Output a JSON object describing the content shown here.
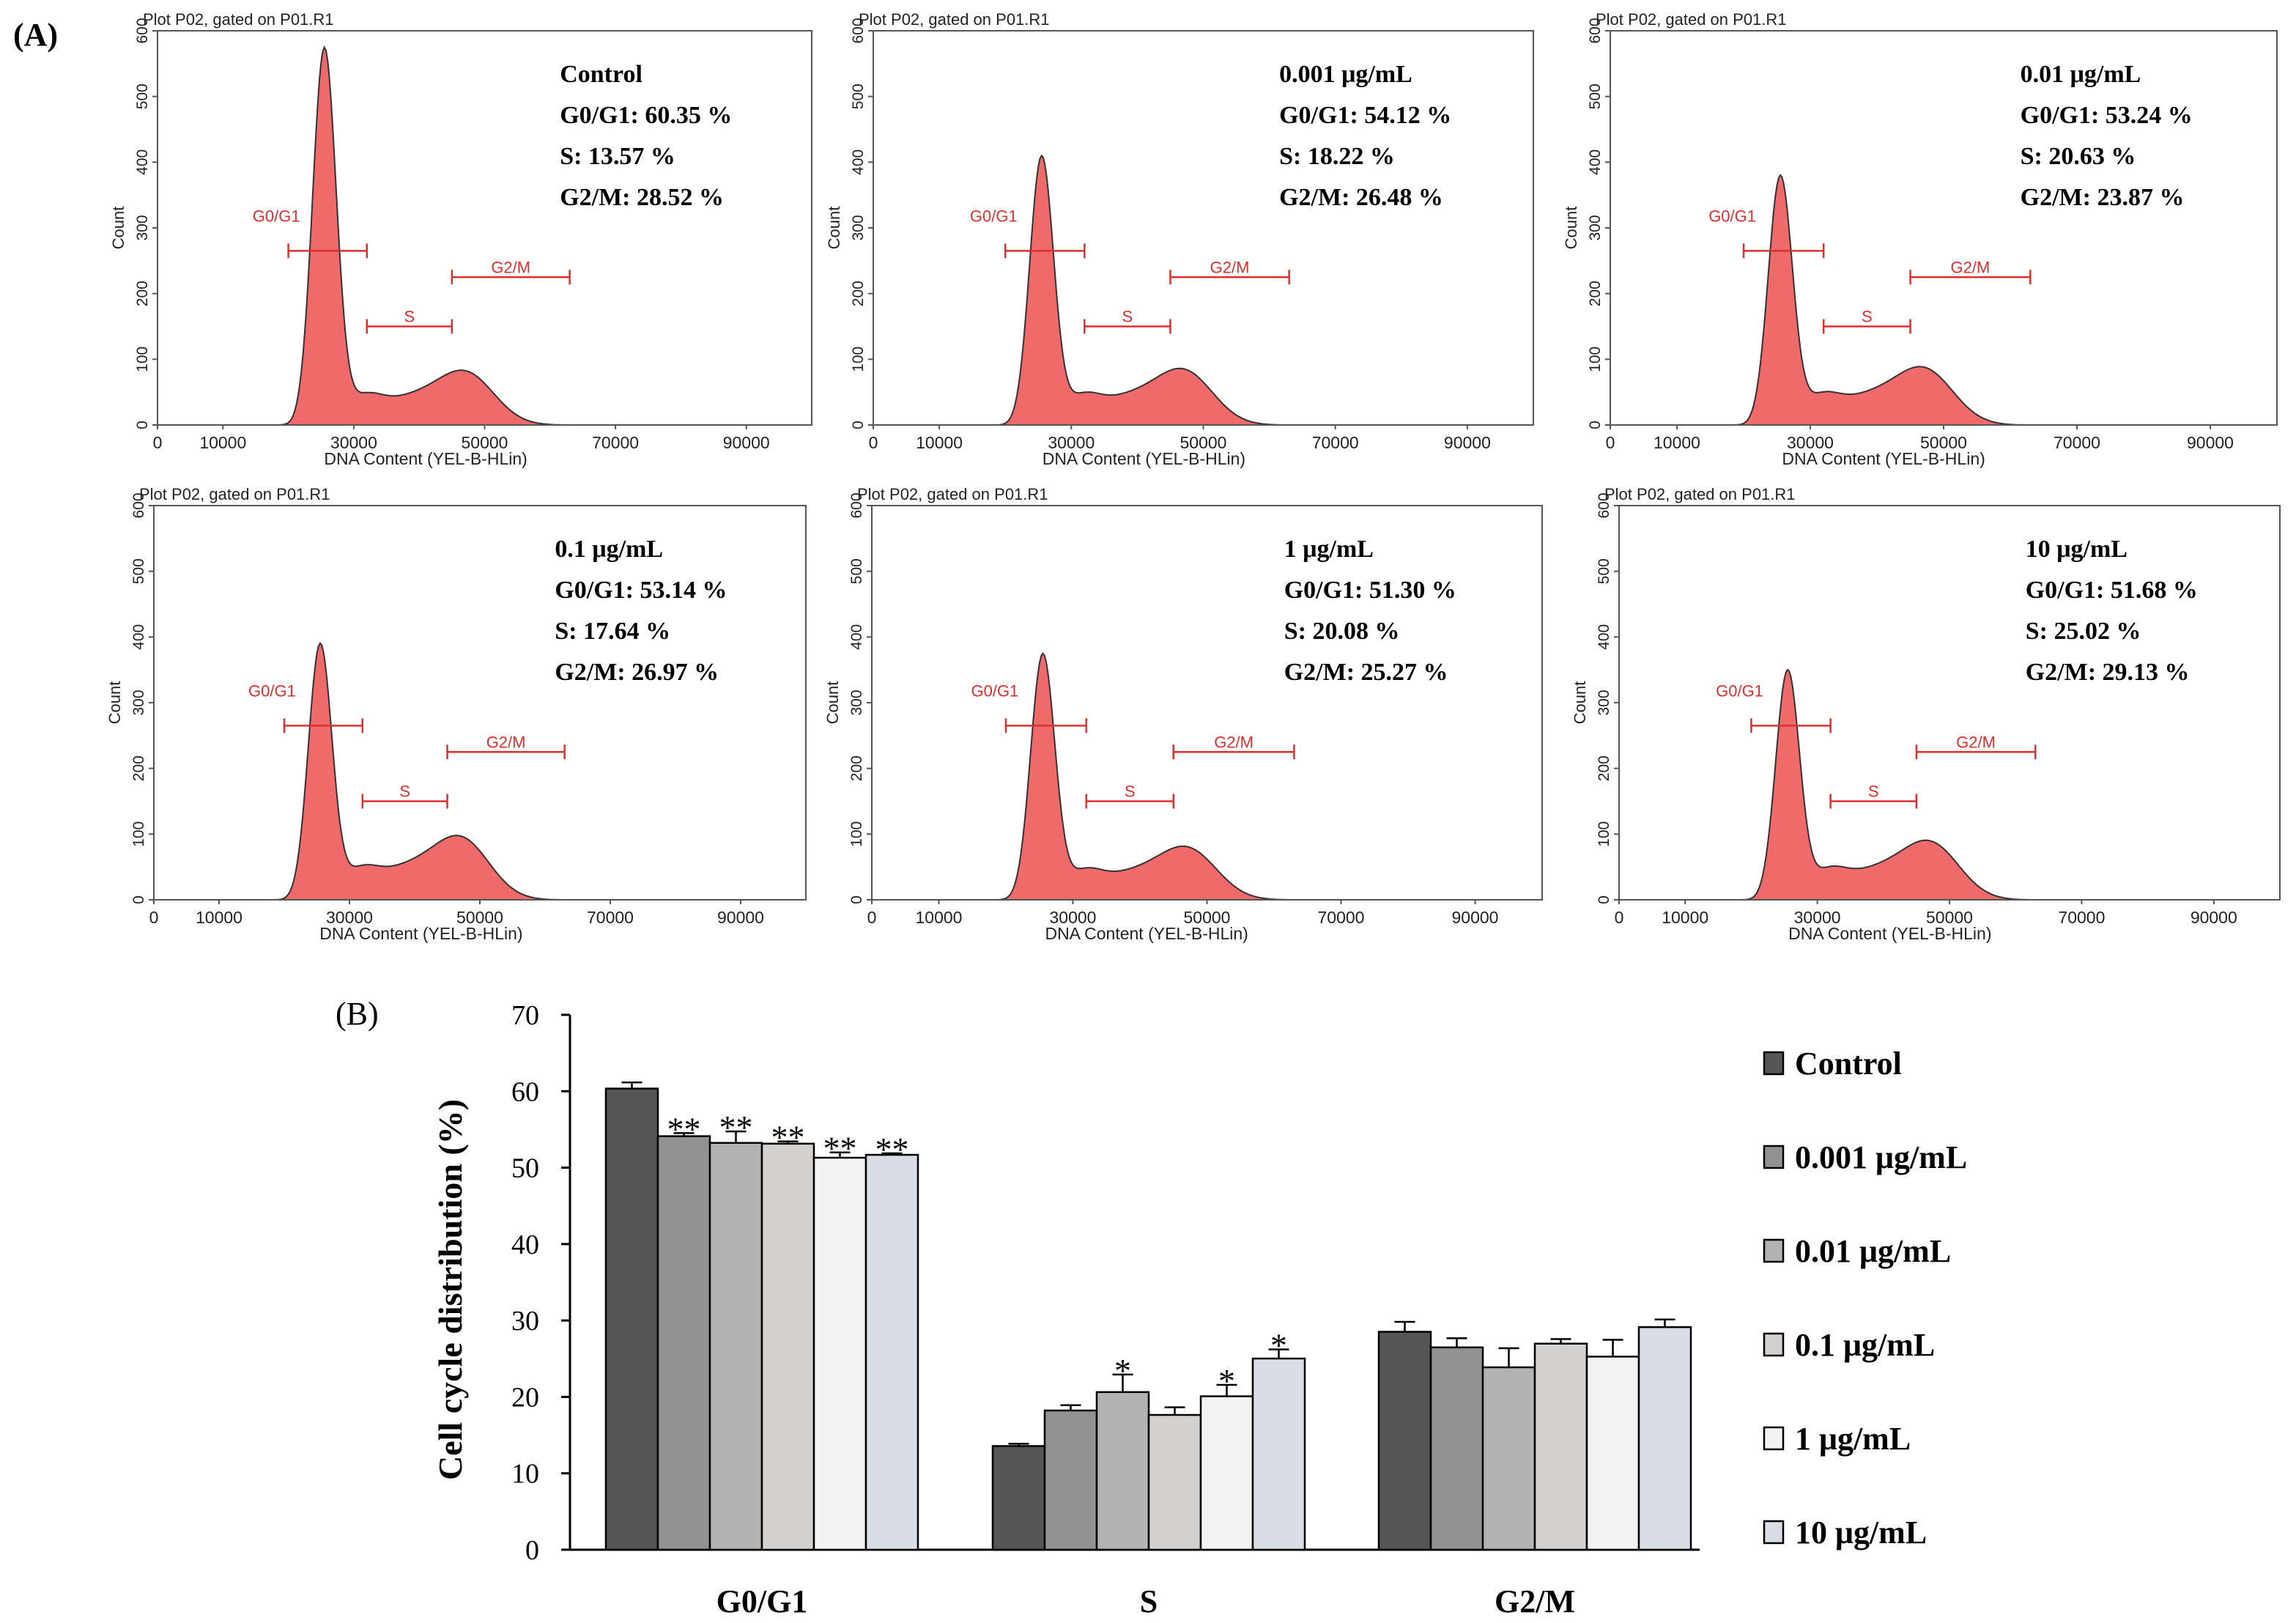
{
  "figure": {
    "panel_a_label": "(A)",
    "panel_b_label": "(B)"
  },
  "chart_data": [
    {
      "type": "histogram",
      "panel": "A",
      "header": "Plot P02, gated on P01.R1",
      "xlabel": "DNA Content (YEL-B-HLin)",
      "ylabel": "Count",
      "xlim": [
        0,
        100000
      ],
      "ylim": [
        0,
        600
      ],
      "xticks": [
        0,
        10000,
        30000,
        50000,
        70000,
        90000
      ],
      "yticks": [
        0,
        100,
        200,
        300,
        400,
        500,
        600
      ],
      "gate_labels": {
        "g0g1": "G0/G1",
        "s": "S",
        "g2m": "G2/M"
      },
      "gates": {
        "g0g1": [
          20000,
          32000
        ],
        "s": [
          32000,
          45000
        ],
        "g2m": [
          45000,
          63000
        ]
      },
      "fill_color": "#ef6a6a",
      "plots": [
        {
          "title": "Control",
          "g0g1": "G0/G1: 60.35 %",
          "s": "S: 13.57 %",
          "g2m": "G2/M: 28.52 %",
          "g1_peak": 570,
          "g2_peak": 92
        },
        {
          "title": "0.001 μg/mL",
          "g0g1": "G0/G1: 54.12 %",
          "s": "S: 18.22 %",
          "g2m": "G2/M: 26.48 %",
          "g1_peak": 405,
          "g2_peak": 95
        },
        {
          "title": "0.01 μg/mL",
          "g0g1": "G0/G1: 53.24 %",
          "s": "S: 20.63 %",
          "g2m": "G2/M: 23.87 %",
          "g1_peak": 375,
          "g2_peak": 98
        },
        {
          "title": "0.1 μg/mL",
          "g0g1": "G0/G1: 53.14 %",
          "s": "S: 17.64 %",
          "g2m": "G2/M: 26.97 %",
          "g1_peak": 385,
          "g2_peak": 108
        },
        {
          "title": "1 μg/mL",
          "g0g1": "G0/G1: 51.30 %",
          "s": "S: 20.08 %",
          "g2m": "G2/M: 25.27 %",
          "g1_peak": 370,
          "g2_peak": 90
        },
        {
          "title": "10 μg/mL",
          "g0g1": "G0/G1: 51.68 %",
          "s": "S: 25.02 %",
          "g2m": "G2/M: 29.13 %",
          "g1_peak": 345,
          "g2_peak": 100
        }
      ]
    },
    {
      "type": "bar",
      "panel": "B",
      "categories": [
        "G0/G1",
        "S",
        "G2/M"
      ],
      "ylabel": "Cell cycle distribution (%)",
      "ylim": [
        0,
        70
      ],
      "yticks": [
        0,
        10,
        20,
        30,
        40,
        50,
        60,
        70
      ],
      "series": [
        {
          "name": "Control",
          "color": "#555555",
          "values": [
            60.35,
            13.57,
            28.52
          ],
          "errors": [
            0.8,
            0.3,
            1.3
          ],
          "sig": [
            "",
            "",
            ""
          ]
        },
        {
          "name": "0.001 μg/mL",
          "color": "#929292",
          "values": [
            54.12,
            18.22,
            26.48
          ],
          "errors": [
            0.4,
            0.7,
            1.2
          ],
          "sig": [
            "**",
            "",
            ""
          ]
        },
        {
          "name": "0.01 μg/mL",
          "color": "#b3b3b3",
          "values": [
            53.24,
            20.63,
            23.87
          ],
          "errors": [
            1.5,
            2.3,
            2.5
          ],
          "sig": [
            "**",
            "*",
            ""
          ]
        },
        {
          "name": "0.1 μg/mL",
          "color": "#d3d0d0",
          "values": [
            53.14,
            17.64,
            26.97
          ],
          "errors": [
            0.3,
            1.0,
            0.6
          ],
          "sig": [
            "**",
            "",
            ""
          ]
        },
        {
          "name": "1 μg/mL",
          "color": "#f2f2f2",
          "values": [
            51.3,
            20.08,
            25.27
          ],
          "errors": [
            0.7,
            1.5,
            2.2
          ],
          "sig": [
            "**",
            "*",
            ""
          ]
        },
        {
          "name": "10 μg/mL",
          "color": "#d9dee6",
          "values": [
            51.68,
            25.02,
            29.13
          ],
          "errors": [
            0.2,
            1.2,
            1.0
          ],
          "sig": [
            "**",
            "*",
            ""
          ]
        }
      ]
    }
  ]
}
